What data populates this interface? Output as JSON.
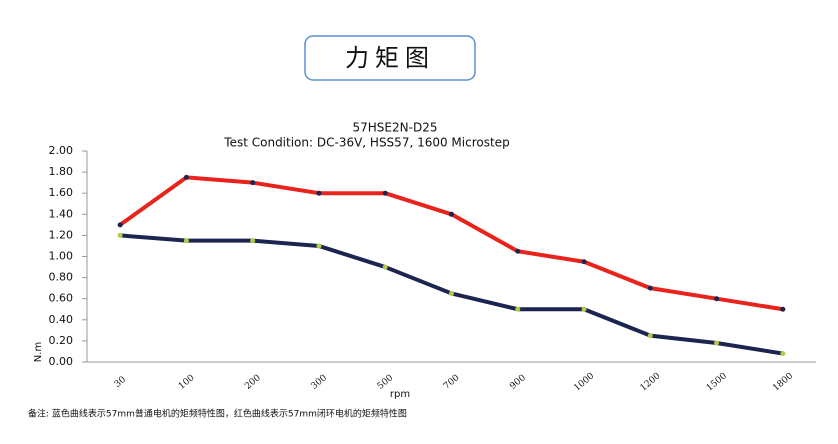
{
  "header": {
    "title": "力矩图"
  },
  "chart_data": {
    "type": "line",
    "title": "57HSE2N-D25",
    "subtitle": "Test Condition:   DC-36V,   HSS57,   1600 Microstep",
    "x_label": "rpm",
    "y_label": "N.m",
    "categories": [
      "30",
      "100",
      "200",
      "300",
      "500",
      "700",
      "900",
      "1000",
      "1200",
      "1500",
      "1800"
    ],
    "series": [
      {
        "color": "#e8231b",
        "marker_color": "#1c2450",
        "values": [
          1.3,
          1.75,
          1.7,
          1.6,
          1.6,
          1.4,
          1.05,
          0.95,
          0.7,
          0.6,
          0.5
        ]
      },
      {
        "color": "#1c2450",
        "marker_color": "#b5c94a",
        "values": [
          1.2,
          1.15,
          1.15,
          1.1,
          0.9,
          0.65,
          0.5,
          0.5,
          0.25,
          0.18,
          0.08
        ]
      }
    ],
    "ylim": [
      0,
      2
    ],
    "yticks": [
      {
        "value": 0,
        "label": "0.00"
      },
      {
        "value": 0.2,
        "label": "0.20"
      },
      {
        "value": 0.4,
        "label": "0.40"
      },
      {
        "value": 0.6,
        "label": "0.60"
      },
      {
        "value": 0.8,
        "label": "0.80"
      },
      {
        "value": 1,
        "label": "1.00"
      },
      {
        "value": 1.2,
        "label": "1.20"
      },
      {
        "value": 1.4,
        "label": "1.40"
      },
      {
        "value": 1.6,
        "label": "1.60"
      },
      {
        "value": 1.8,
        "label": "1.80"
      },
      {
        "value": 2,
        "label": "2.00"
      }
    ]
  },
  "note": "备注:   蓝色曲线表示57mm普通电机的矩频特性图，红色曲线表示57mm闭环电机的矩频特性图"
}
